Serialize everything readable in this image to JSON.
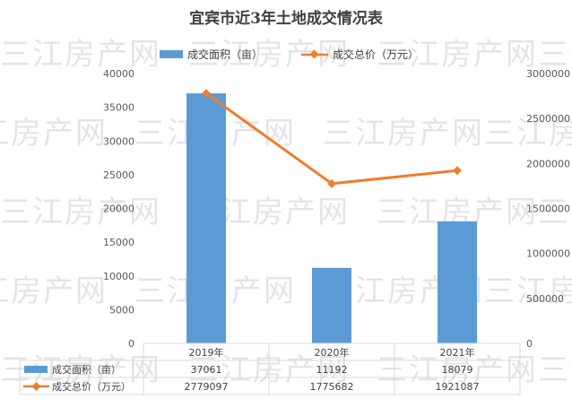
{
  "watermark": "三江房产网",
  "chart_data": {
    "type": "bar",
    "title": "宜宾市近3年土地成交情况表",
    "categories": [
      "2019年",
      "2020年",
      "2021年"
    ],
    "series": [
      {
        "name": "成交面积（亩）",
        "type": "bar",
        "axis": "left",
        "values": [
          37061,
          11192,
          18079
        ],
        "color": "#5b9bd5"
      },
      {
        "name": "成交总价（万元）",
        "type": "line",
        "axis": "right",
        "values": [
          2779097,
          1775682,
          1921087
        ],
        "color": "#ed7d31"
      }
    ],
    "left_axis": {
      "min": 0,
      "max": 40000,
      "ticks": [
        "0",
        "5000",
        "10000",
        "15000",
        "20000",
        "25000",
        "30000",
        "35000",
        "40000"
      ]
    },
    "right_axis": {
      "min": 0,
      "max": 3000000,
      "ticks": [
        "0",
        "500000",
        "1000000",
        "1500000",
        "2000000",
        "2500000",
        "3000000"
      ]
    },
    "legend_position": "top",
    "data_table": true,
    "grid": false
  }
}
